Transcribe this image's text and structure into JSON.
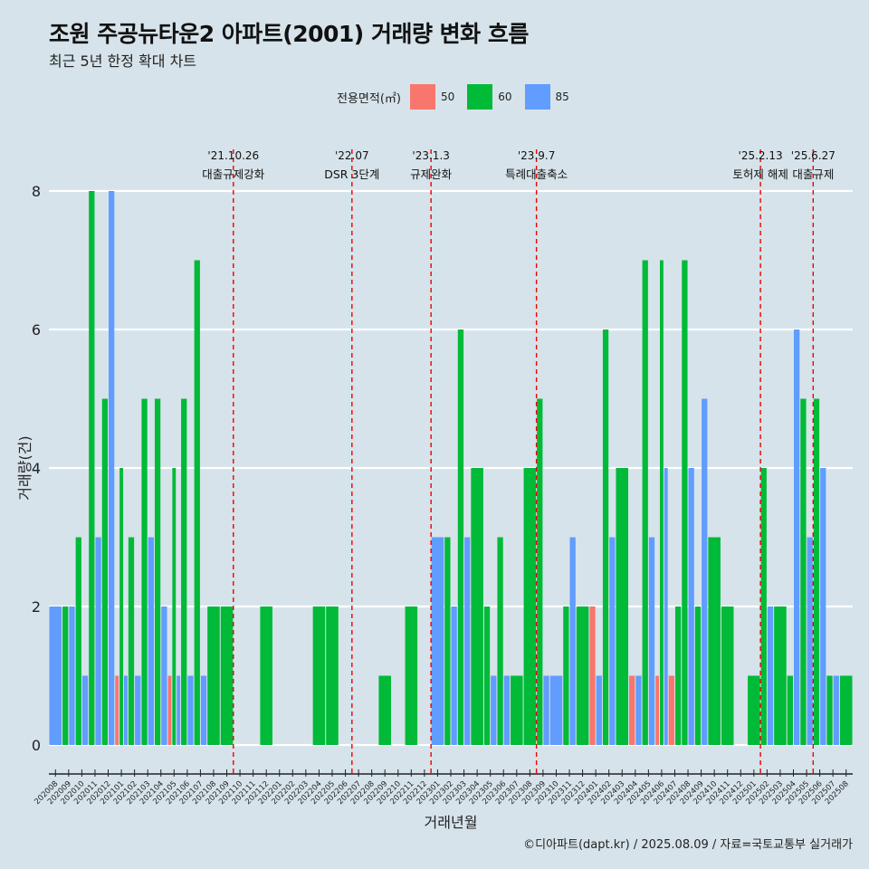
{
  "title": "조원 주공뉴타운2 아파트(2001) 거래량 변화 흐름",
  "subtitle": "최근 5년 한정 확대 차트",
  "legend": {
    "title": "전용면적(㎡)",
    "items": [
      {
        "label": "50",
        "color": "#f8766d"
      },
      {
        "label": "60",
        "color": "#00ba38"
      },
      {
        "label": "85",
        "color": "#619cff"
      }
    ]
  },
  "footer": "©디아파트(dapt.kr) / 2025.08.09 / 자료=국토교통부 실거래가",
  "chart_data": {
    "type": "bar",
    "xlabel": "거래년월",
    "ylabel": "거래량(건)",
    "ylim": [
      0,
      8
    ],
    "yticks": [
      0,
      2,
      4,
      6,
      8
    ],
    "grid": true,
    "legend_position": "top",
    "categories": [
      "202008",
      "202009",
      "202010",
      "202011",
      "202012",
      "202101",
      "202102",
      "202103",
      "202104",
      "202105",
      "202106",
      "202107",
      "202108",
      "202109",
      "202110",
      "202111",
      "202112",
      "202201",
      "202202",
      "202203",
      "202204",
      "202205",
      "202206",
      "202207",
      "202208",
      "202209",
      "202210",
      "202211",
      "202212",
      "202301",
      "202302",
      "202303",
      "202304",
      "202305",
      "202306",
      "202307",
      "202308",
      "202309",
      "202310",
      "202311",
      "202312",
      "202401",
      "202402",
      "202403",
      "202404",
      "202405",
      "202406",
      "202407",
      "202408",
      "202409",
      "202410",
      "202411",
      "202412",
      "202501",
      "202502",
      "202503",
      "202504",
      "202505",
      "202506",
      "202507",
      "202508"
    ],
    "series": [
      {
        "name": "50",
        "color": "#f8766d",
        "values": [
          0,
          0,
          0,
          0,
          0,
          1,
          0,
          0,
          0,
          1,
          0,
          0,
          0,
          0,
          0,
          0,
          0,
          0,
          0,
          0,
          0,
          0,
          0,
          0,
          0,
          0,
          0,
          0,
          0,
          0,
          0,
          0,
          0,
          0,
          0,
          0,
          0,
          0,
          0,
          0,
          0,
          2,
          0,
          0,
          1,
          0,
          1,
          1,
          0,
          0,
          0,
          0,
          0,
          0,
          0,
          0,
          0,
          0,
          0,
          0,
          0
        ]
      },
      {
        "name": "60",
        "color": "#00ba38",
        "values": [
          0,
          2,
          3,
          8,
          5,
          4,
          3,
          5,
          5,
          4,
          5,
          7,
          2,
          2,
          0,
          0,
          2,
          0,
          0,
          0,
          2,
          2,
          0,
          0,
          0,
          1,
          0,
          2,
          0,
          0,
          3,
          6,
          4,
          2,
          3,
          1,
          4,
          5,
          0,
          2,
          2,
          0,
          6,
          4,
          0,
          7,
          7,
          2,
          7,
          2,
          3,
          2,
          0,
          1,
          4,
          2,
          1,
          5,
          5,
          1,
          1
        ]
      },
      {
        "name": "85",
        "color": "#619cff",
        "values": [
          2,
          2,
          1,
          3,
          8,
          1,
          1,
          3,
          2,
          1,
          1,
          1,
          0,
          0,
          0,
          0,
          0,
          0,
          0,
          0,
          0,
          0,
          0,
          0,
          0,
          0,
          0,
          0,
          0,
          3,
          2,
          3,
          0,
          1,
          1,
          0,
          0,
          1,
          1,
          3,
          0,
          1,
          3,
          0,
          1,
          3,
          4,
          0,
          4,
          5,
          0,
          0,
          0,
          0,
          2,
          0,
          6,
          3,
          4,
          1,
          0
        ]
      }
    ],
    "annotations": [
      {
        "month": "202110",
        "date": "'21.10.26",
        "label": "대출규제강화"
      },
      {
        "month": "202207",
        "date": "'22.07",
        "label": "DSR 3단계"
      },
      {
        "month": "202301",
        "date": "'23.1.3",
        "label": "규제완화"
      },
      {
        "month": "202309",
        "date": "'23.9.7",
        "label": "특례대출축소"
      },
      {
        "month": "202502",
        "date": "'25.2.13",
        "label": "토허제 해제"
      },
      {
        "month": "202506",
        "date": "'25.6.27",
        "label": "대출규제"
      }
    ]
  }
}
